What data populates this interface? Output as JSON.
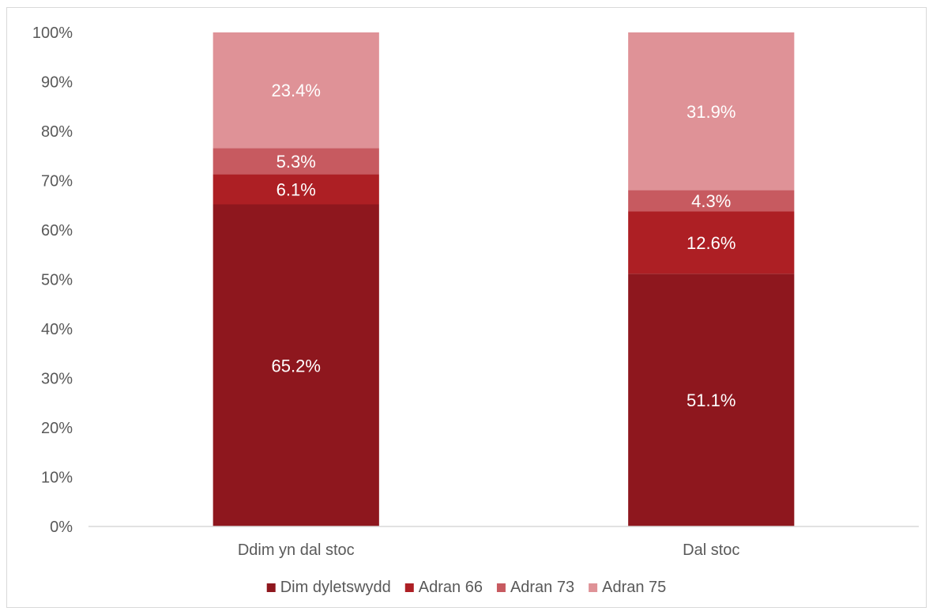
{
  "chart_data": {
    "type": "bar",
    "stacked": true,
    "percent_stacked": true,
    "categories": [
      "Ddim yn dal stoc",
      "Dal stoc"
    ],
    "series": [
      {
        "name": "Dim dyletswydd",
        "values": [
          65.2,
          51.1
        ],
        "labels": [
          "65.2%",
          "51.1%"
        ],
        "color": "#8e171e"
      },
      {
        "name": "Adran 66",
        "values": [
          6.1,
          12.6
        ],
        "labels": [
          "6.1%",
          "12.6%"
        ],
        "color": "#ad1f24"
      },
      {
        "name": "Adran 73",
        "values": [
          5.3,
          4.3
        ],
        "labels": [
          "5.3%",
          "4.3%"
        ],
        "color": "#c75a60"
      },
      {
        "name": "Adran 75",
        "values": [
          23.4,
          31.9
        ],
        "labels": [
          "23.4%",
          "31.9%"
        ],
        "color": "#df9297"
      }
    ],
    "y_ticks": [
      "0%",
      "10%",
      "20%",
      "30%",
      "40%",
      "50%",
      "60%",
      "70%",
      "80%",
      "90%",
      "100%"
    ],
    "ylim": [
      0,
      100
    ],
    "grid": false,
    "legend_position": "bottom"
  }
}
